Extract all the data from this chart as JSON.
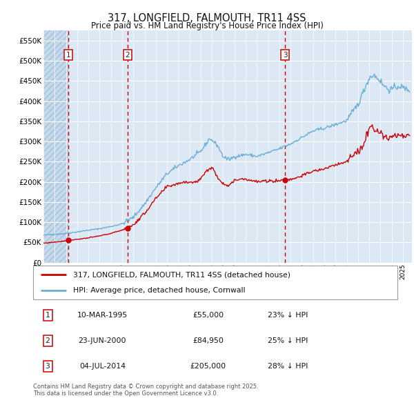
{
  "title": "317, LONGFIELD, FALMOUTH, TR11 4SS",
  "subtitle": "Price paid vs. HM Land Registry's House Price Index (HPI)",
  "legend_entry1": "317, LONGFIELD, FALMOUTH, TR11 4SS (detached house)",
  "legend_entry2": "HPI: Average price, detached house, Cornwall",
  "transactions": [
    {
      "num": 1,
      "price": 55000,
      "x": 1995.19
    },
    {
      "num": 2,
      "price": 84950,
      "x": 2000.48
    },
    {
      "num": 3,
      "price": 205000,
      "x": 2014.51
    }
  ],
  "transaction_labels": [
    {
      "num": 1,
      "date_str": "10-MAR-1995",
      "price_str": "£55,000",
      "pct_str": "23% ↓ HPI"
    },
    {
      "num": 2,
      "date_str": "23-JUN-2000",
      "price_str": "£84,950",
      "pct_str": "25% ↓ HPI"
    },
    {
      "num": 3,
      "date_str": "04-JUL-2014",
      "price_str": "£205,000",
      "pct_str": "28% ↓ HPI"
    }
  ],
  "hpi_color": "#6baed6",
  "price_color": "#cc0000",
  "vline_color": "#cc0000",
  "bg_color": "#dce9f5",
  "grid_color": "#ffffff",
  "ylim": [
    0,
    575000
  ],
  "yticks": [
    0,
    50000,
    100000,
    150000,
    200000,
    250000,
    300000,
    350000,
    400000,
    450000,
    500000,
    550000
  ],
  "xlim_start": 1993.0,
  "xlim_end": 2025.8,
  "footnote": "Contains HM Land Registry data © Crown copyright and database right 2025.\nThis data is licensed under the Open Government Licence v3.0."
}
